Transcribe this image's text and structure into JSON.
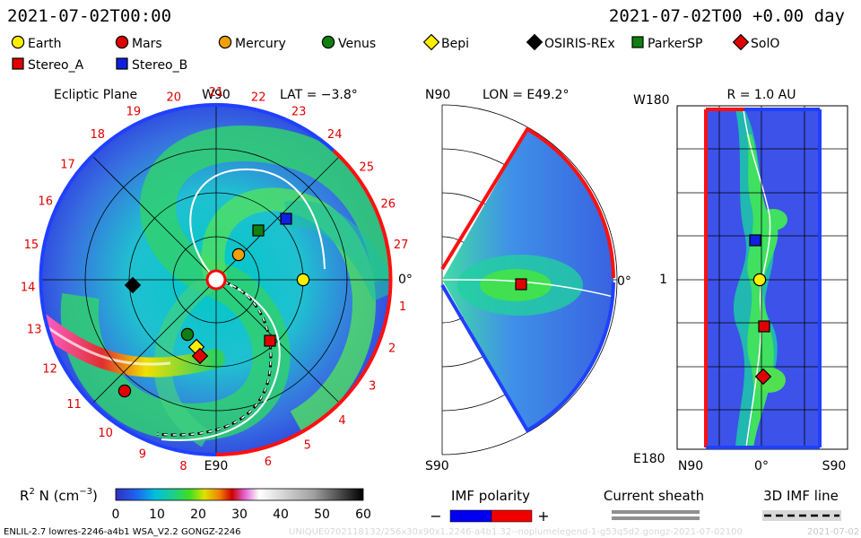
{
  "header": {
    "left_time": "2021-07-02T00:00",
    "right_time": "2021-07-02T00 +0.00 day"
  },
  "legend": {
    "items": [
      {
        "name": "Earth",
        "marker": "circle",
        "color": "#ffee00"
      },
      {
        "name": "Mars",
        "marker": "circle",
        "color": "#e00000"
      },
      {
        "name": "Mercury",
        "marker": "circle",
        "color": "#f0a000"
      },
      {
        "name": "Venus",
        "marker": "circle",
        "color": "#108010"
      },
      {
        "name": "Bepi",
        "marker": "diamond",
        "color": "#ffee00"
      },
      {
        "name": "OSIRIS-REx",
        "marker": "diamond",
        "color": "#000000"
      },
      {
        "name": "ParkerSP",
        "marker": "square",
        "color": "#108010"
      },
      {
        "name": "SolO",
        "marker": "diamond",
        "color": "#e00000"
      },
      {
        "name": "Stereo_A",
        "marker": "square",
        "color": "#e00000"
      },
      {
        "name": "Stereo_B",
        "marker": "square",
        "color": "#1020e0"
      }
    ]
  },
  "panels": {
    "ecliptic": {
      "title": "Ecliptic Plane",
      "top_label": "W90",
      "lat_label": "LAT = −3.8°",
      "right_label": "0°",
      "bottom_label": "E90",
      "carrington_labels": [
        "1",
        "2",
        "3",
        "4",
        "5",
        "6",
        "8",
        "9",
        "10",
        "11",
        "12",
        "13",
        "14",
        "15",
        "16",
        "17",
        "18",
        "19",
        "20",
        "21",
        "22",
        "23",
        "24",
        "25",
        "26",
        "27"
      ]
    },
    "meridional": {
      "top_label": "N90",
      "lon_label": "LON = E49.2°",
      "right_label": "0°",
      "bottom_label": "S90"
    },
    "radial": {
      "title": "R = 1.0 AU",
      "top_left": "W180",
      "mid_left": "1",
      "bottom_left": "E180",
      "x_labels": [
        "N90",
        "0°",
        "S90"
      ]
    }
  },
  "colorbar": {
    "label_prefix": "R",
    "label_sup": "2",
    "label_suffix": " N (cm",
    "label_exp": "−3",
    "label_close": ")",
    "ticks": [
      "0",
      "10",
      "20",
      "30",
      "40",
      "50",
      "60"
    ]
  },
  "polarity": {
    "title": "IMF polarity",
    "minus": "−",
    "plus": "+",
    "neg_color": "#0000ee",
    "pos_color": "#ee0000"
  },
  "sheath": {
    "title": "Current sheath"
  },
  "imf_line": {
    "title": "3D IMF line"
  },
  "footer": {
    "left": "ENLIL-2.7 lowres-2246-a4b1 WSA_V2.2 GONGZ-2246",
    "right_faint": "UNIQUE0702118132/256x30x90x1.2246-a4b1.32--noplumelegend-1-g53q5d2.gongz-2021-07-02100",
    "right_date": "2021-07-02"
  },
  "chart_data": [
    {
      "type": "heatmap",
      "title": "Ecliptic Plane",
      "projection": "polar",
      "quantity": "R² N (cm⁻³)",
      "value_range": [
        0,
        60
      ],
      "bodies_markers": [
        "Earth",
        "Mars",
        "Mercury",
        "Venus",
        "Bepi",
        "OSIRIS-REx",
        "ParkerSP",
        "SolO",
        "Stereo_A",
        "Stereo_B"
      ]
    },
    {
      "type": "heatmap",
      "title": "LON = E49.2°",
      "projection": "meridional",
      "value_range": [
        0,
        60
      ]
    },
    {
      "type": "heatmap",
      "title": "R = 1.0 AU",
      "projection": "longitude-latitude",
      "value_range": [
        0,
        60
      ]
    }
  ]
}
